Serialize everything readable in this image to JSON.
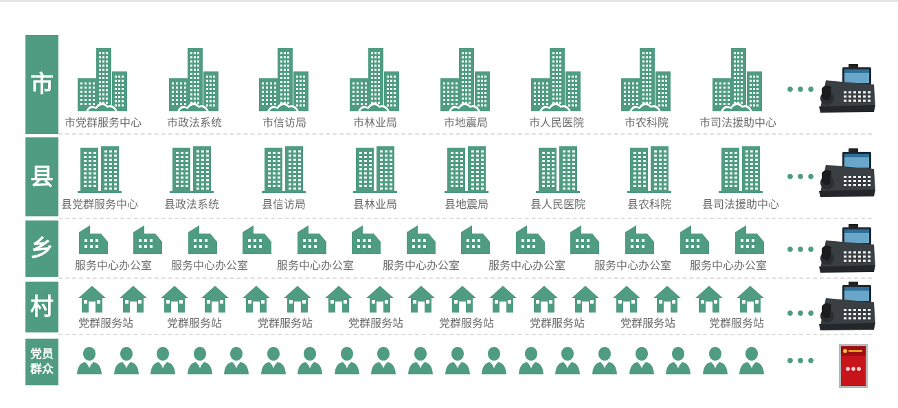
{
  "theme": {
    "accent": "#4f9c82",
    "label_color": "#6b6b6b",
    "divider": "#dedede"
  },
  "more_symbol": "•••",
  "tiers": [
    {
      "name": "市",
      "icon": "office-tower-icon",
      "device": "video-phone-icon",
      "labels": [
        "市党群服务中心",
        "市政法系统",
        "市信访局",
        "市林业局",
        "市地震局",
        "市人民医院",
        "市农科院",
        "市司法援助中心"
      ]
    },
    {
      "name": "县",
      "icon": "twin-building-icon",
      "device": "video-phone-icon",
      "labels": [
        "县党群服务中心",
        "县政法系统",
        "县信访局",
        "县林业局",
        "县地震局",
        "县人民医院",
        "县农科院",
        "县司法援助中心"
      ]
    },
    {
      "name": "乡",
      "icon": "small-building-icon",
      "device": "video-phone-icon",
      "labels": [
        "服务中心办公室",
        "服务中心办公室",
        "服务中心办公室",
        "服务中心办公室",
        "服务中心办公室",
        "服务中心办公室",
        "服务中心办公室"
      ]
    },
    {
      "name": "村",
      "icon": "house-icon",
      "device": "video-phone-icon",
      "labels": [
        "党群服务站",
        "党群服务站",
        "党群服务站",
        "党群服务站",
        "党群服务站",
        "党群服务站",
        "党群服务站",
        "党群服务站"
      ]
    },
    {
      "name": "党员\n群众",
      "icon": "person-icon",
      "device": "tablet-terminal-icon",
      "labels": []
    }
  ]
}
